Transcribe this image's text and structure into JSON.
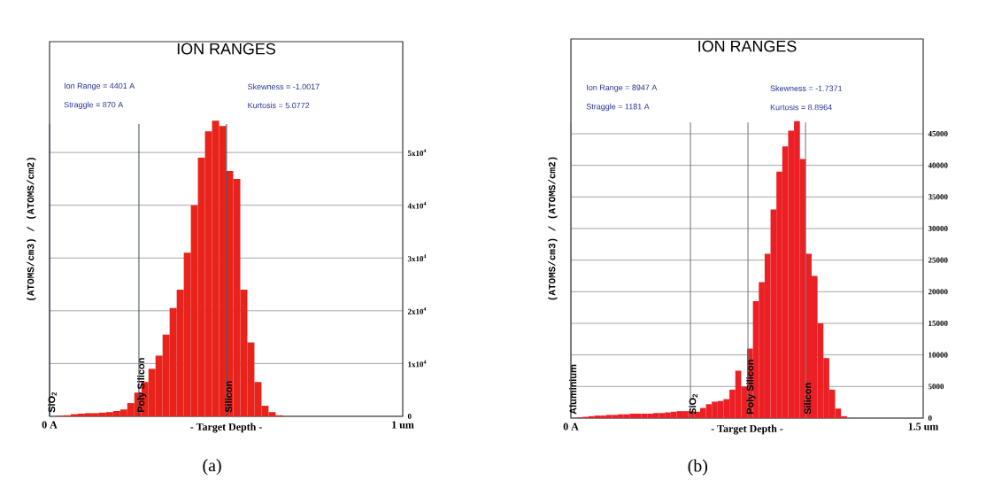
{
  "chart_data": [
    {
      "type": "histogram",
      "title": "ION RANGES",
      "xlabel": "- Target Depth -",
      "ylabel": "(ATOMS/cm3) / (ATOMS/cm2)",
      "annotations": [
        "Ion Range = 4401 A",
        "Straggle = 870 A",
        "Skewness = -1.0017",
        "Kurtosis = 5.0772",
        "(a)"
      ],
      "bins": [
        0,
        0.02,
        0.04,
        0.06,
        0.08,
        0.1,
        0.12,
        0.14,
        0.16,
        0.18,
        0.2,
        0.22,
        0.24,
        0.26,
        0.28,
        0.3,
        0.32,
        0.34,
        0.36,
        0.38,
        0.4,
        0.42,
        0.44,
        0.46,
        0.48,
        0.5,
        0.52,
        0.54,
        0.56,
        0.58,
        0.6,
        0.62,
        0.64,
        0.66,
        0.68,
        0.7,
        0.72,
        0.74,
        0.76,
        0.78,
        0.8,
        0.82,
        0.84,
        0.86,
        0.88,
        0.9,
        0.92,
        0.94,
        0.96,
        0.98,
        1.0
      ],
      "values": [
        0,
        100,
        200,
        400,
        500,
        600,
        600,
        700,
        800,
        1000,
        1300,
        2500,
        4500,
        6500,
        9000,
        11500,
        15500,
        20500,
        24000,
        31000,
        40000,
        49000,
        54000,
        56000,
        55000,
        46500,
        45000,
        24000,
        14000,
        6500,
        2000,
        800,
        200,
        0,
        0,
        0,
        0,
        0,
        0,
        0,
        0,
        0,
        0,
        0,
        0,
        0,
        0,
        0,
        0,
        0
      ],
      "color": "#e8231c",
      "xlim": [
        0,
        1
      ],
      "xticks": [
        {
          "value": 0,
          "label": "0 A"
        },
        {
          "value": 1,
          "label": "1 um"
        }
      ],
      "ylim": [
        0,
        71000
      ],
      "yticks": [
        0,
        {
          "value": 10000,
          "label": "1x10$^{4}$"
        },
        {
          "value": 20000,
          "label": "2x10$^{4}$"
        },
        {
          "value": 30000,
          "label": "3x10$^{4}$"
        },
        {
          "value": 40000,
          "label": "4x10$^{4}$"
        },
        {
          "value": 50000,
          "label": "5x10$^{4}$"
        }
      ],
      "grid": "y",
      "ref_lines": [
        {
          "axis": "x",
          "value": 0,
          "label": "SiO$_{2}$",
          "color": "#3c4a5a"
        },
        {
          "axis": "x",
          "value": 0.253,
          "label": "Poly Silicon",
          "color": "#3c4a5a"
        },
        {
          "axis": "x",
          "value": 0.501,
          "label": "Silicon",
          "color": "#3c4a5a"
        }
      ]
    },
    {
      "type": "histogram",
      "title": "ION RANGES",
      "xlabel": "- Target Depth -",
      "ylabel": "(ATOMS/cm3) / (ATOMS/cm2)",
      "annotations": [
        "Ion Range = 8947 A",
        "Straggle = 1181 A",
        "Skewness = -1.7371",
        "Kurtosis = 8.8964",
        "(b)"
      ],
      "bins": [
        0,
        0.025,
        0.05,
        0.075,
        0.1,
        0.125,
        0.15,
        0.175,
        0.2,
        0.225,
        0.25,
        0.275,
        0.3,
        0.325,
        0.35,
        0.375,
        0.4,
        0.425,
        0.45,
        0.475,
        0.5,
        0.525,
        0.55,
        0.575,
        0.6,
        0.625,
        0.65,
        0.675,
        0.7,
        0.725,
        0.75,
        0.775,
        0.8,
        0.825,
        0.85,
        0.875,
        0.9,
        0.925,
        0.95,
        0.975,
        1.0,
        1.025,
        1.05,
        1.075,
        1.1,
        1.125,
        1.15,
        1.175,
        1.2,
        1.225,
        1.25,
        1.275,
        1.3,
        1.325,
        1.35,
        1.375,
        1.4,
        1.425,
        1.45,
        1.475,
        1.5
      ],
      "values": [
        0,
        100,
        200,
        300,
        400,
        400,
        500,
        500,
        600,
        600,
        700,
        700,
        700,
        700,
        800,
        800,
        900,
        1000,
        1100,
        1100,
        1100,
        1000,
        1600,
        2200,
        2600,
        2700,
        3000,
        4500,
        7500,
        5000,
        11000,
        18500,
        21500,
        26000,
        33000,
        39000,
        43000,
        45500,
        47000,
        41000,
        26000,
        22500,
        15000,
        9500,
        4500,
        1500,
        300,
        0,
        0,
        0,
        0,
        0,
        0,
        0,
        0,
        0,
        0,
        0,
        0,
        0
      ],
      "color": "#ec2024",
      "xlim": [
        0,
        1.5
      ],
      "xticks": [
        {
          "value": 0,
          "label": "0 A"
        },
        {
          "value": 1.5,
          "label": "1.5 um"
        }
      ],
      "ylim": [
        0,
        60000
      ],
      "yticks": [
        0,
        5000,
        10000,
        15000,
        20000,
        25000,
        30000,
        35000,
        40000,
        45000
      ],
      "grid": "y",
      "ref_lines": [
        {
          "axis": "x",
          "value": 0,
          "label": "Aluminium",
          "color": "#707070"
        },
        {
          "axis": "x",
          "value": 0.509,
          "label": "SiO$_{2}$",
          "color": "#707070"
        },
        {
          "axis": "x",
          "value": 0.754,
          "label": "Poly Silicon",
          "color": "#707070"
        },
        {
          "axis": "x",
          "value": 0.999,
          "label": "Silicon",
          "color": "#707070"
        }
      ]
    }
  ]
}
